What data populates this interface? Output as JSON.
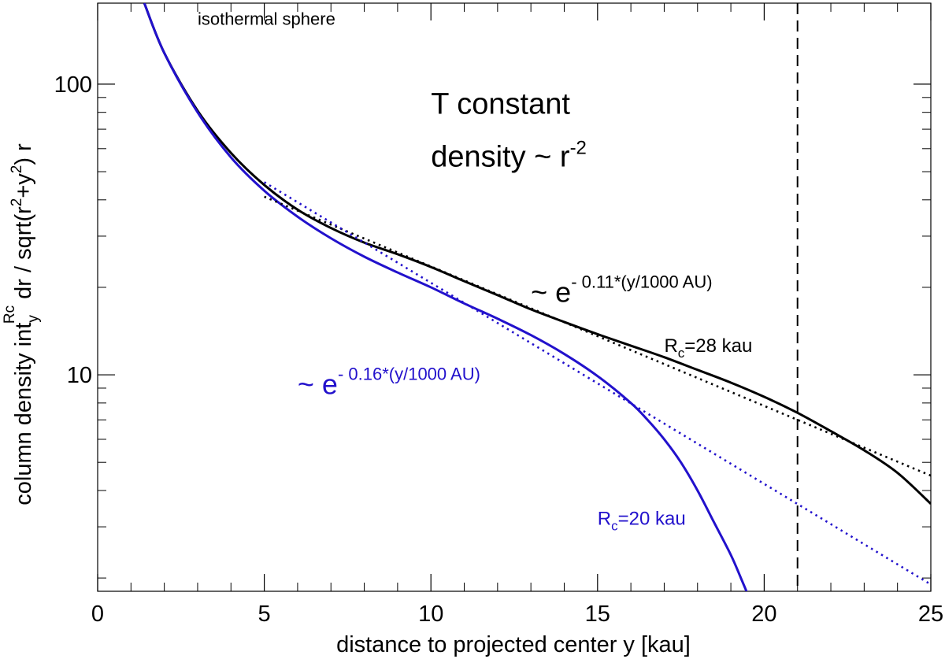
{
  "chart_data": {
    "type": "line",
    "title": "",
    "xlabel": "distance to projected center y [kau]",
    "ylabel": {
      "main": "column density int",
      "sub": "y",
      "sup": "Rc",
      "mid": " dr / sqrt(r",
      "sup2": "2",
      "mid2": "+y",
      "sup3": "2",
      "end": ") r"
    },
    "xlim": [
      0,
      25
    ],
    "ylim": [
      1.8,
      190
    ],
    "yscale": "log",
    "grid": false,
    "x_ticks": [
      0,
      5,
      10,
      15,
      20,
      25
    ],
    "y_ticks": [
      10,
      100
    ],
    "series": [
      {
        "color": "#000000",
        "style": "solid",
        "x": [
          1.4,
          2.0,
          3.0,
          4.0,
          5.0,
          6.0,
          7.0,
          8.0,
          9.0,
          10.0,
          11.0,
          12.0,
          13.0,
          14.0,
          15.0,
          16.0,
          17.0,
          18.0,
          19.0,
          20.0,
          21.0,
          22.0,
          23.0,
          24.0,
          25.0
        ],
        "y": [
          190,
          128,
          81,
          58,
          45,
          37,
          32,
          28.5,
          26,
          23.5,
          21,
          18.8,
          16.8,
          15.2,
          13.8,
          12.6,
          11.5,
          10.4,
          9.4,
          8.4,
          7.4,
          6.4,
          5.5,
          4.6,
          3.6
        ]
      },
      {
        "color": "#2211cc",
        "style": "solid",
        "x": [
          1.4,
          2.0,
          3.0,
          4.0,
          5.0,
          6.0,
          7.0,
          8.0,
          9.0,
          10.0,
          11.0,
          12.0,
          13.0,
          14.0,
          15.0,
          16.0,
          16.5,
          17.0,
          17.5,
          18.0,
          18.5,
          19.0,
          19.3,
          19.6,
          19.7
        ],
        "y": [
          190,
          128,
          80,
          56,
          43,
          35,
          29.5,
          25.5,
          22.5,
          20,
          17.6,
          15.6,
          13.7,
          11.8,
          9.9,
          8.0,
          7.0,
          6.0,
          5.0,
          4.0,
          3.1,
          2.4,
          2.0,
          1.65,
          1.5
        ]
      },
      {
        "color": "#000000",
        "style": "dotted",
        "x": [
          5,
          25
        ],
        "y": [
          41,
          4.5
        ]
      },
      {
        "color": "#2211cc",
        "style": "dotted",
        "x": [
          5,
          25
        ],
        "y": [
          46,
          1.9
        ]
      }
    ],
    "vertical_line": {
      "x": 21,
      "color": "#000000",
      "style": "dashed"
    },
    "annotations": [
      {
        "parts": [
          "isothermal sphere"
        ],
        "x": 3.0,
        "y": 160,
        "color": "#000000"
      },
      {
        "parts": [
          "T constant"
        ],
        "x": 10.0,
        "y": 79,
        "color": "#000000"
      },
      {
        "parts": [
          "density ~ r",
          "-2"
        ],
        "x": 10.0,
        "y": 52,
        "color": "#000000"
      },
      {
        "parts": [
          "~ e",
          "- 0.11*(y/1000 AU)"
        ],
        "x": 13.0,
        "y": 17.8,
        "color": "#000000"
      },
      {
        "parts": [
          "R",
          "c",
          "=28 kau"
        ],
        "x": 17.0,
        "y": 12.0,
        "color": "#000000"
      },
      {
        "parts": [
          "~ e",
          "- 0.16*(y/1000 AU)"
        ],
        "x": 6.0,
        "y": 8.6,
        "color": "#2211cc"
      },
      {
        "parts": [
          "R",
          "c",
          "=20 kau"
        ],
        "x": 15.0,
        "y": 3.05,
        "color": "#2211cc"
      }
    ]
  }
}
